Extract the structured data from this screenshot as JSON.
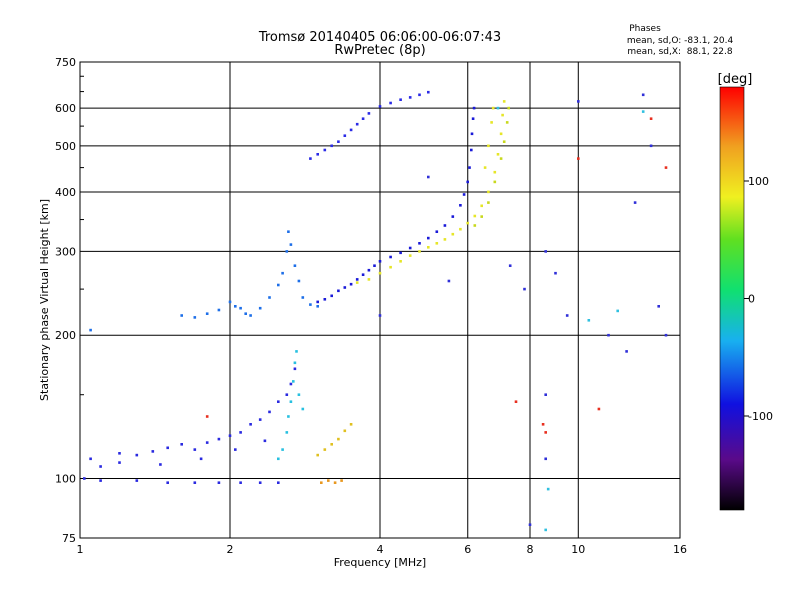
{
  "chart_data": {
    "type": "scatter",
    "title_line1": "Tromsø 20140405 06:06:00-06:07:43",
    "title_line2": "RwPretec (8p)",
    "stats": {
      "header": "Phases",
      "line_o": "mean, sd,O: -83.1, 20.4",
      "line_x": "mean, sd,X:  88.1, 22.8"
    },
    "xlabel": "Frequency [MHz]",
    "ylabel": "Stationary phase Virtual Height [km]",
    "x_scale": "log",
    "y_scale": "log",
    "xlim": [
      1,
      16
    ],
    "ylim": [
      75,
      750
    ],
    "x_ticks": [
      1,
      2,
      4,
      6,
      8,
      10,
      16
    ],
    "x_tick_labels": [
      "1",
      "2",
      "4",
      "6",
      "8",
      "10",
      "16"
    ],
    "y_ticks": [
      75,
      100,
      200,
      300,
      400,
      500,
      600,
      750
    ],
    "y_tick_labels": [
      "75",
      "100",
      "200",
      "300",
      "400",
      "500",
      "600",
      "750"
    ],
    "grid": true,
    "colorbar": {
      "label": "[deg]",
      "min": -180,
      "max": 180,
      "ticks": [
        100,
        0,
        -100
      ],
      "tick_labels": [
        "100",
        "0",
        "-100"
      ]
    },
    "series": [
      {
        "color": "#2a2ae0",
        "phase": -100,
        "points": [
          [
            1.02,
            100
          ],
          [
            1.1,
            99
          ],
          [
            1.3,
            99
          ],
          [
            1.5,
            98
          ],
          [
            1.7,
            98
          ],
          [
            1.9,
            98
          ],
          [
            2.1,
            98
          ],
          [
            2.3,
            98
          ],
          [
            2.5,
            98
          ],
          [
            1.05,
            110
          ],
          [
            1.1,
            106
          ],
          [
            1.2,
            108
          ],
          [
            1.3,
            112
          ],
          [
            1.4,
            114
          ],
          [
            1.5,
            116
          ],
          [
            1.6,
            118
          ],
          [
            1.7,
            115
          ],
          [
            1.8,
            119
          ],
          [
            1.9,
            121
          ],
          [
            2.0,
            123
          ],
          [
            2.1,
            125
          ],
          [
            2.2,
            130
          ],
          [
            2.3,
            133
          ],
          [
            2.4,
            138
          ],
          [
            2.5,
            145
          ],
          [
            2.6,
            150
          ],
          [
            2.65,
            158
          ],
          [
            2.7,
            170
          ],
          [
            1.2,
            113
          ],
          [
            1.45,
            107
          ],
          [
            1.75,
            110
          ],
          [
            2.05,
            115
          ],
          [
            2.35,
            120
          ]
        ]
      },
      {
        "color": "#1e6fe8",
        "phase": -90,
        "points": [
          [
            1.6,
            220
          ],
          [
            1.7,
            218
          ],
          [
            1.8,
            222
          ],
          [
            1.9,
            226
          ],
          [
            2.0,
            235
          ],
          [
            2.05,
            230
          ],
          [
            2.1,
            228
          ],
          [
            2.15,
            222
          ],
          [
            2.2,
            220
          ],
          [
            2.3,
            228
          ],
          [
            2.4,
            240
          ],
          [
            2.5,
            255
          ],
          [
            2.55,
            270
          ],
          [
            2.6,
            300
          ],
          [
            2.62,
            330
          ],
          [
            2.65,
            310
          ],
          [
            2.7,
            280
          ],
          [
            2.75,
            260
          ],
          [
            2.8,
            240
          ],
          [
            2.9,
            232
          ],
          [
            3.0,
            230
          ],
          [
            1.05,
            205
          ]
        ]
      },
      {
        "color": "#1a1ad8",
        "phase": -110,
        "points": [
          [
            3.0,
            235
          ],
          [
            3.1,
            238
          ],
          [
            3.2,
            242
          ],
          [
            3.3,
            248
          ],
          [
            3.4,
            252
          ],
          [
            3.5,
            256
          ],
          [
            3.6,
            262
          ],
          [
            3.7,
            268
          ],
          [
            3.8,
            274
          ],
          [
            3.9,
            280
          ],
          [
            4.0,
            286
          ],
          [
            4.2,
            292
          ],
          [
            4.4,
            298
          ],
          [
            4.6,
            305
          ],
          [
            4.8,
            312
          ],
          [
            5.0,
            320
          ],
          [
            5.2,
            330
          ],
          [
            5.4,
            340
          ],
          [
            5.6,
            355
          ],
          [
            5.8,
            375
          ],
          [
            5.9,
            395
          ],
          [
            6.0,
            420
          ],
          [
            6.05,
            450
          ],
          [
            6.1,
            490
          ],
          [
            6.12,
            530
          ],
          [
            6.15,
            570
          ],
          [
            6.18,
            600
          ]
        ]
      },
      {
        "color": "#2b2be6",
        "phase": -105,
        "points": [
          [
            2.9,
            470
          ],
          [
            3.0,
            480
          ],
          [
            3.1,
            490
          ],
          [
            3.2,
            500
          ],
          [
            3.3,
            510
          ],
          [
            3.4,
            525
          ],
          [
            3.5,
            540
          ],
          [
            3.6,
            555
          ],
          [
            3.7,
            570
          ],
          [
            3.8,
            585
          ],
          [
            4.0,
            605
          ],
          [
            4.2,
            615
          ],
          [
            4.4,
            625
          ],
          [
            4.6,
            632
          ],
          [
            4.8,
            640
          ],
          [
            5.0,
            648
          ]
        ]
      },
      {
        "color": "#e6e628",
        "phase": 90,
        "points": [
          [
            3.6,
            258
          ],
          [
            3.8,
            262
          ],
          [
            4.0,
            270
          ],
          [
            4.2,
            278
          ],
          [
            4.4,
            286
          ],
          [
            4.6,
            294
          ],
          [
            4.8,
            300
          ],
          [
            5.0,
            306
          ],
          [
            5.2,
            312
          ],
          [
            5.4,
            318
          ],
          [
            5.6,
            326
          ],
          [
            5.8,
            334
          ],
          [
            6.0,
            344
          ],
          [
            6.2,
            356
          ],
          [
            6.4,
            374
          ],
          [
            6.6,
            400
          ],
          [
            6.8,
            440
          ],
          [
            6.9,
            480
          ],
          [
            7.0,
            530
          ],
          [
            7.05,
            580
          ],
          [
            7.1,
            620
          ],
          [
            6.75,
            600
          ],
          [
            6.7,
            560
          ],
          [
            6.6,
            500
          ],
          [
            6.5,
            450
          ]
        ]
      },
      {
        "color": "#c8d81e",
        "phase": 70,
        "points": [
          [
            6.2,
            340
          ],
          [
            6.4,
            355
          ],
          [
            6.6,
            380
          ],
          [
            6.8,
            420
          ],
          [
            7.0,
            470
          ],
          [
            7.1,
            510
          ],
          [
            7.2,
            560
          ],
          [
            7.25,
            600
          ]
        ]
      },
      {
        "color": "#28c0e0",
        "phase": -40,
        "points": [
          [
            2.5,
            110
          ],
          [
            2.55,
            115
          ],
          [
            2.6,
            125
          ],
          [
            2.62,
            135
          ],
          [
            2.65,
            145
          ],
          [
            2.68,
            160
          ],
          [
            2.7,
            175
          ],
          [
            2.72,
            185
          ],
          [
            2.75,
            150
          ],
          [
            2.8,
            140
          ]
        ]
      },
      {
        "color": "#e89820",
        "phase": 120,
        "points": [
          [
            3.05,
            98
          ],
          [
            3.15,
            99
          ],
          [
            3.25,
            98
          ],
          [
            3.35,
            99
          ]
        ]
      },
      {
        "color": "#e0c020",
        "phase": 100,
        "points": [
          [
            3.0,
            112
          ],
          [
            3.1,
            115
          ],
          [
            3.2,
            118
          ],
          [
            3.3,
            121
          ],
          [
            3.4,
            126
          ],
          [
            3.5,
            130
          ]
        ]
      },
      {
        "color": "#e83020",
        "phase": 150,
        "points": [
          [
            10.0,
            470
          ],
          [
            14.0,
            570
          ],
          [
            15.0,
            450
          ],
          [
            11.0,
            140
          ],
          [
            8.5,
            130
          ],
          [
            8.6,
            125
          ],
          [
            7.5,
            145
          ],
          [
            1.8,
            135
          ]
        ]
      },
      {
        "color": "#3030d8",
        "phase": -100,
        "points": [
          [
            7.8,
            250
          ],
          [
            8.6,
            300
          ],
          [
            9.0,
            270
          ],
          [
            9.5,
            220
          ],
          [
            10.0,
            620
          ],
          [
            11.5,
            200
          ],
          [
            12.5,
            185
          ],
          [
            13.0,
            380
          ],
          [
            13.5,
            640
          ],
          [
            14.0,
            500
          ],
          [
            14.5,
            230
          ],
          [
            15.0,
            200
          ],
          [
            8.6,
            150
          ],
          [
            8.6,
            110
          ],
          [
            8.0,
            80
          ],
          [
            5.0,
            430
          ],
          [
            5.5,
            260
          ],
          [
            4.0,
            220
          ],
          [
            7.3,
            280
          ]
        ]
      },
      {
        "color": "#30c0e0",
        "phase": -30,
        "points": [
          [
            10.5,
            215
          ],
          [
            12.0,
            225
          ],
          [
            13.5,
            590
          ],
          [
            8.7,
            95
          ],
          [
            8.6,
            78
          ],
          [
            6.9,
            600
          ]
        ]
      }
    ]
  }
}
